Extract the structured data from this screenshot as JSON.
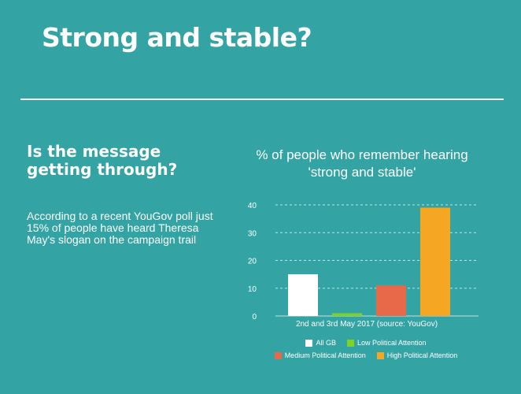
{
  "header": {
    "title": "Strong and stable?"
  },
  "section": {
    "heading": "Is the message getting through?",
    "body": "According to a recent YouGov poll just 15% of people have heard Theresa May's slogan on the campaign trail"
  },
  "chart_data": {
    "type": "bar",
    "title": "% of people who remember hearing 'strong and stable'",
    "xlabel": "2nd and 3rd May 2017 (source: YouGov)",
    "ylabel": "",
    "ylim": [
      0,
      40
    ],
    "yticks": [
      0,
      10,
      20,
      30,
      40
    ],
    "grid": true,
    "legend_position": "bottom",
    "series": [
      {
        "name": "All GB",
        "value": 15,
        "color": "#ffffff"
      },
      {
        "name": "Low Political Attention",
        "value": 1,
        "color": "#7ed321"
      },
      {
        "name": "Medium Political Attention",
        "value": 11,
        "color": "#e8694a"
      },
      {
        "name": "High Political Attention",
        "value": 39,
        "color": "#f5a623"
      }
    ]
  }
}
